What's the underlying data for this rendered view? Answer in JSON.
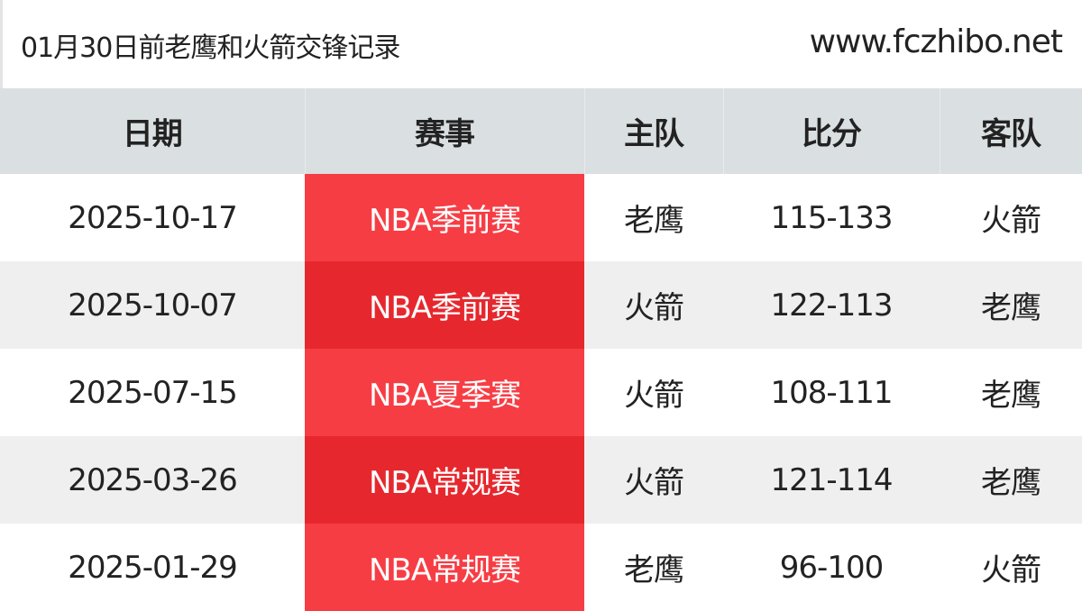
{
  "header": {
    "title": "01月30日前老鹰和火箭交锋记录",
    "site": "www.fczhibo.net"
  },
  "colors": {
    "header_bg": "#dadfe1",
    "competition_red": "#f73d44",
    "competition_red_alt": "#e6282e",
    "row_alt": "#efefef"
  },
  "table": {
    "columns": [
      "日期",
      "赛事",
      "主队",
      "比分",
      "客队"
    ],
    "rows": [
      [
        "2025-10-17",
        "NBA季前赛",
        "老鹰",
        "115-133",
        "火箭"
      ],
      [
        "2025-10-07",
        "NBA季前赛",
        "火箭",
        "122-113",
        "老鹰"
      ],
      [
        "2025-07-15",
        "NBA夏季赛",
        "火箭",
        "108-111",
        "老鹰"
      ],
      [
        "2025-03-26",
        "NBA常规赛",
        "火箭",
        "121-114",
        "老鹰"
      ],
      [
        "2025-01-29",
        "NBA常规赛",
        "老鹰",
        "96-100",
        "火箭"
      ]
    ]
  }
}
